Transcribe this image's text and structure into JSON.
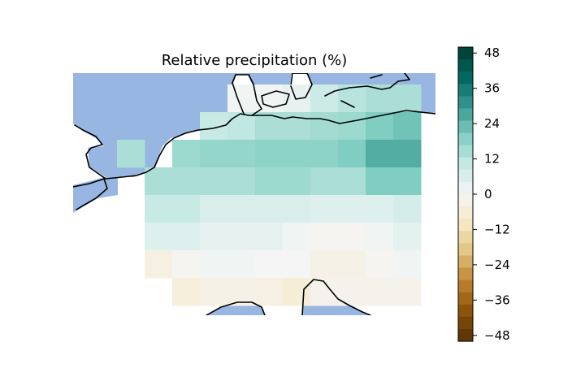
{
  "title": "Relative precipitation (%)",
  "colorbar": {
    "colormap": "BrBG",
    "vmin": -50,
    "vmax": 50,
    "ticks": [
      "48",
      "36",
      "24",
      "12",
      "0",
      "−12",
      "−24",
      "−36",
      "−48"
    ],
    "tick_values": [
      48,
      36,
      24,
      12,
      0,
      -12,
      -24,
      -36,
      -48
    ]
  },
  "map": {
    "ocean_color": "#97b6e1",
    "land_outside_grid": "#ffffff",
    "coastline_color": "#000000",
    "grid_rows": [
      [
        null,
        null,
        null,
        null,
        null,
        1,
        1,
        3,
        9,
        12,
        14,
        14
      ],
      [
        null,
        null,
        null,
        null,
        10,
        11,
        14,
        14,
        15,
        16,
        20,
        22
      ],
      [
        null,
        14,
        null,
        16,
        17,
        17,
        18,
        18,
        18,
        20,
        26,
        26
      ],
      [
        null,
        null,
        14,
        14,
        14,
        14,
        16,
        16,
        14,
        14,
        20,
        20
      ],
      [
        null,
        null,
        10,
        10,
        6,
        6,
        6,
        6,
        5,
        5,
        5,
        7
      ],
      [
        null,
        null,
        5,
        5,
        3,
        3,
        3,
        1,
        -1,
        -1,
        1,
        4
      ],
      [
        null,
        null,
        -4,
        -1,
        1,
        1,
        0,
        0,
        -3,
        -3,
        -1,
        1
      ],
      [
        null,
        null,
        null,
        -5,
        -3,
        -3,
        -4,
        -6,
        -2,
        -2,
        -2,
        -2
      ]
    ]
  }
}
